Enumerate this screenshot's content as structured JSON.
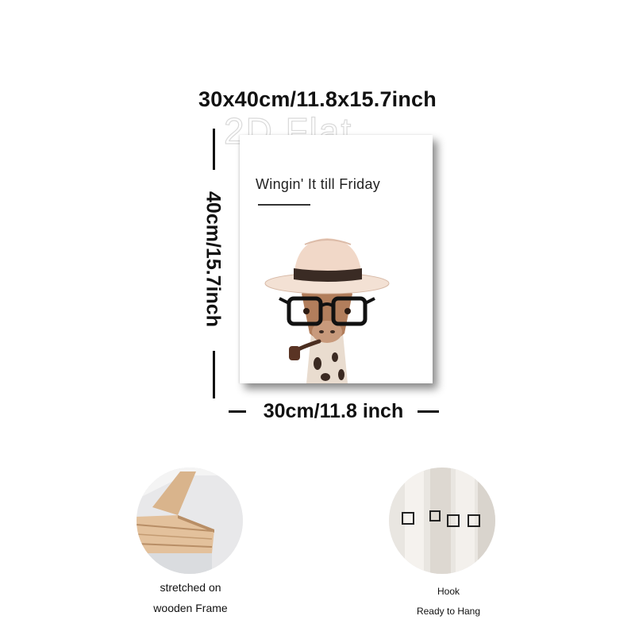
{
  "dimensions": {
    "full": "30x40cm/11.8x15.7inch",
    "height": "40cm/15.7inch",
    "width": "30cm/11.8 inch"
  },
  "watermark": "2D Flat",
  "print": {
    "title": "Wingin' It till Friday",
    "subject_icon": "giraffe-with-hat-and-glasses-illustration"
  },
  "features": [
    {
      "icon": "wooden-frame-corner-photo",
      "lines": [
        "stretched on",
        "wooden Frame"
      ]
    },
    {
      "icon": "hanging-hooks-photo",
      "lines": [
        "Hook",
        "Ready to Hang"
      ]
    }
  ],
  "colors": {
    "hat": "#f1d8c8",
    "hat_band": "#3a2b24",
    "giraffe": "#b27e5c",
    "spots": "#3b2a22",
    "wood": "#d9b48c"
  }
}
